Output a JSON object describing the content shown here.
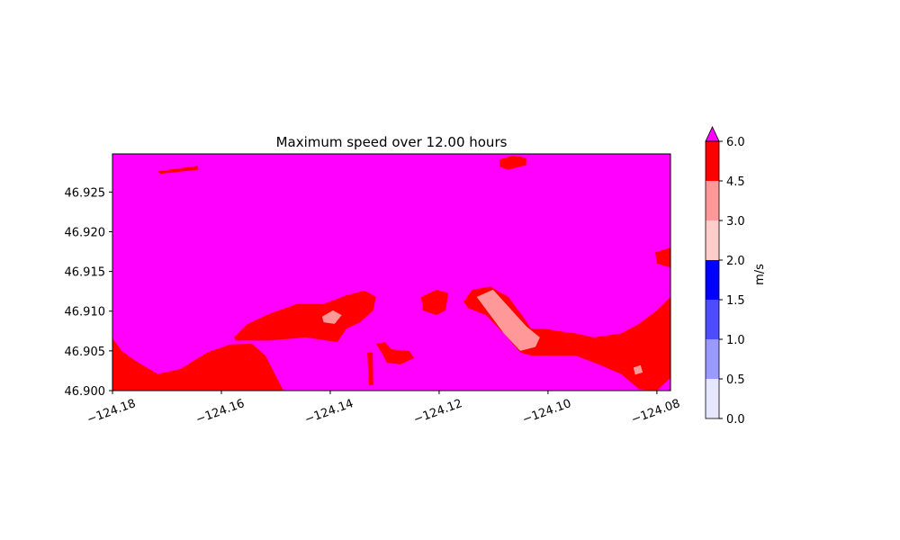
{
  "chart_data": {
    "type": "contour",
    "title": "Maximum speed over 12.00 hours",
    "xlim": [
      -124.18,
      -124.0775
    ],
    "ylim": [
      46.9,
      46.9298
    ],
    "xticks": [
      {
        "value": -124.18,
        "label": "−124.18"
      },
      {
        "value": -124.16,
        "label": "−124.16"
      },
      {
        "value": -124.14,
        "label": "−124.14"
      },
      {
        "value": -124.12,
        "label": "−124.12"
      },
      {
        "value": -124.1,
        "label": "−124.10"
      },
      {
        "value": -124.08,
        "label": "−124.08"
      }
    ],
    "yticks": [
      {
        "value": 46.9,
        "label": "46.900"
      },
      {
        "value": 46.905,
        "label": "46.905"
      },
      {
        "value": 46.91,
        "label": "46.910"
      },
      {
        "value": 46.915,
        "label": "46.915"
      },
      {
        "value": 46.92,
        "label": "46.920"
      },
      {
        "value": 46.925,
        "label": "46.925"
      }
    ],
    "background_level": 6,
    "regions": [
      {
        "level": 4.5,
        "points": [
          [
            -124.18,
            46.9066
          ],
          [
            -124.1783,
            46.905
          ],
          [
            -124.1759,
            46.9038
          ],
          [
            -124.1717,
            46.9021
          ],
          [
            -124.1676,
            46.9027
          ],
          [
            -124.1626,
            46.9048
          ],
          [
            -124.1585,
            46.9058
          ],
          [
            -124.1544,
            46.9059
          ],
          [
            -124.1519,
            46.9044
          ],
          [
            -124.1486,
            46.9
          ],
          [
            -124.18,
            46.9
          ]
        ]
      },
      {
        "level": 4.5,
        "points": [
          [
            -124.1577,
            46.9067
          ],
          [
            -124.1552,
            46.9084
          ],
          [
            -124.1511,
            46.9097
          ],
          [
            -124.1461,
            46.9109
          ],
          [
            -124.1412,
            46.9109
          ],
          [
            -124.137,
            46.912
          ],
          [
            -124.1337,
            46.9126
          ],
          [
            -124.1316,
            46.9118
          ],
          [
            -124.1321,
            46.9101
          ],
          [
            -124.1345,
            46.9086
          ],
          [
            -124.137,
            46.9078
          ],
          [
            -124.1387,
            46.9061
          ],
          [
            -124.1445,
            46.9067
          ],
          [
            -124.1511,
            46.9063
          ],
          [
            -124.1574,
            46.9063
          ]
        ]
      },
      {
        "level": 3,
        "points": [
          [
            -124.1415,
            46.9093
          ],
          [
            -124.1395,
            46.9101
          ],
          [
            -124.1379,
            46.9095
          ],
          [
            -124.1392,
            46.9084
          ],
          [
            -124.1412,
            46.9086
          ]
        ]
      },
      {
        "level": 4.5,
        "points": [
          [
            -124.1316,
            46.9059
          ],
          [
            -124.1299,
            46.9061
          ],
          [
            -124.1288,
            46.9052
          ],
          [
            -124.1255,
            46.905
          ],
          [
            -124.1246,
            46.9041
          ],
          [
            -124.1271,
            46.9033
          ],
          [
            -124.1296,
            46.9035
          ],
          [
            -124.1304,
            46.9046
          ]
        ]
      },
      {
        "level": 4.5,
        "points": [
          [
            -124.1332,
            46.9048
          ],
          [
            -124.1322,
            46.9048
          ],
          [
            -124.1321,
            46.9007
          ],
          [
            -124.1329,
            46.9007
          ]
        ]
      },
      {
        "level": 4.5,
        "points": [
          [
            -124.1233,
            46.9118
          ],
          [
            -124.1205,
            46.9127
          ],
          [
            -124.1183,
            46.9123
          ],
          [
            -124.1188,
            46.9101
          ],
          [
            -124.1205,
            46.9095
          ],
          [
            -124.123,
            46.9101
          ]
        ]
      },
      {
        "level": 4.5,
        "points": [
          [
            -124.1155,
            46.9112
          ],
          [
            -124.1139,
            46.9127
          ],
          [
            -124.1106,
            46.9131
          ],
          [
            -124.1073,
            46.9118
          ],
          [
            -124.1048,
            46.9095
          ],
          [
            -124.1031,
            46.9078
          ],
          [
            -124.1007,
            46.9078
          ],
          [
            -124.0982,
            46.9075
          ],
          [
            -124.0949,
            46.9072
          ],
          [
            -124.0916,
            46.9067
          ],
          [
            -124.0866,
            46.9072
          ],
          [
            -124.0833,
            46.9084
          ],
          [
            -124.08,
            46.9101
          ],
          [
            -124.0775,
            46.9118
          ],
          [
            -124.0775,
            46.9016
          ],
          [
            -124.08,
            46.9
          ],
          [
            -124.0833,
            46.9002
          ],
          [
            -124.0866,
            46.9021
          ],
          [
            -124.0907,
            46.9033
          ],
          [
            -124.0949,
            46.9044
          ],
          [
            -124.0982,
            46.9044
          ],
          [
            -124.1007,
            46.9044
          ],
          [
            -124.1031,
            46.9044
          ],
          [
            -124.1051,
            46.9048
          ],
          [
            -124.1081,
            46.9072
          ],
          [
            -124.1114,
            46.9095
          ],
          [
            -124.1147,
            46.9104
          ]
        ]
      },
      {
        "level": 3,
        "points": [
          [
            -124.1131,
            46.9118
          ],
          [
            -124.1101,
            46.9127
          ],
          [
            -124.1073,
            46.9106
          ],
          [
            -124.104,
            46.9081
          ],
          [
            -124.1015,
            46.9067
          ],
          [
            -124.1023,
            46.9055
          ],
          [
            -124.1051,
            46.905
          ],
          [
            -124.1081,
            46.9072
          ],
          [
            -124.1106,
            46.9095
          ]
        ]
      },
      {
        "level": 3,
        "points": [
          [
            -124.0843,
            46.9029
          ],
          [
            -124.083,
            46.9032
          ],
          [
            -124.0826,
            46.9023
          ],
          [
            -124.084,
            46.902
          ]
        ]
      },
      {
        "level": 4.5,
        "points": [
          [
            -124.0803,
            46.9174
          ],
          [
            -124.0775,
            46.918
          ],
          [
            -124.0775,
            46.9155
          ],
          [
            -124.08,
            46.916
          ]
        ]
      },
      {
        "level": 4.5,
        "points": [
          [
            -124.1089,
            46.9291
          ],
          [
            -124.1064,
            46.9296
          ],
          [
            -124.104,
            46.9293
          ],
          [
            -124.104,
            46.9284
          ],
          [
            -124.1073,
            46.9278
          ],
          [
            -124.1089,
            46.9282
          ]
        ]
      },
      {
        "level": 4.5,
        "points": [
          [
            -124.1717,
            46.9276
          ],
          [
            -124.1643,
            46.9283
          ],
          [
            -124.1643,
            46.9278
          ],
          [
            -124.1712,
            46.9273
          ]
        ]
      }
    ],
    "colorbar": {
      "label": "m/s",
      "levels": [
        0,
        0.5,
        1,
        1.5,
        2,
        3,
        4.5,
        6
      ],
      "colors": [
        "#e6e6ff",
        "#9999ff",
        "#4d4dff",
        "#0000ff",
        "#ffcccc",
        "#ff9999",
        "#ff0000"
      ],
      "extend_color": "#ff00ff",
      "ticks": [
        {
          "value": 0,
          "label": "0.0"
        },
        {
          "value": 0.5,
          "label": "0.5"
        },
        {
          "value": 1,
          "label": "1.0"
        },
        {
          "value": 1.5,
          "label": "1.5"
        },
        {
          "value": 2,
          "label": "2.0"
        },
        {
          "value": 3,
          "label": "3.0"
        },
        {
          "value": 4.5,
          "label": "4.5"
        },
        {
          "value": 6,
          "label": "6.0"
        }
      ]
    }
  }
}
